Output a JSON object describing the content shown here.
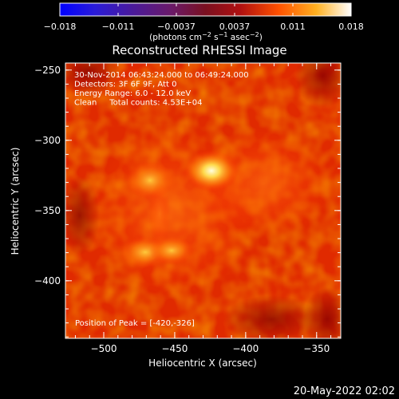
{
  "colorbar": {
    "ticks": [
      "−0.018",
      "−0.011",
      "−0.0037",
      "0.0037",
      "0.011",
      "0.018"
    ],
    "units_prefix": "(photons cm",
    "units_exp1": "−2",
    "units_mid": " s",
    "units_exp2": "−1",
    "units_mid2": " asec",
    "units_exp3": "−2",
    "units_suffix": ")"
  },
  "plot": {
    "title": "Reconstructed RHESSI Image",
    "annotations": [
      "30-Nov-2014 06:43:24.000 to 06:49:24.000",
      "Detectors: 3F 6F 9F, Att 0",
      "Energy Range: 6.0 - 12.0 keV",
      "Clean     Total counts: 4.53E+04"
    ],
    "peak_label": "Position of Peak = [-420,-326]",
    "xlabel": "Heliocentric X (arcsec)",
    "ylabel": "Heliocentric Y (arcsec)",
    "xticks": [
      {
        "value": -500,
        "label": "−500"
      },
      {
        "value": -450,
        "label": "−450"
      },
      {
        "value": -400,
        "label": "−400"
      },
      {
        "value": -350,
        "label": "−350"
      }
    ],
    "yticks": [
      {
        "value": -250,
        "label": "−250"
      },
      {
        "value": -300,
        "label": "−300"
      },
      {
        "value": -350,
        "label": "−350"
      },
      {
        "value": -400,
        "label": "−400"
      }
    ],
    "xlim": [
      -527,
      -333
    ],
    "ylim": [
      -441,
      -245
    ]
  },
  "footer": {
    "timestamp": "20-May-2022 02:02"
  },
  "colormap": "hot",
  "colors": {
    "background": "#000000",
    "foreground": "#ffffff"
  }
}
